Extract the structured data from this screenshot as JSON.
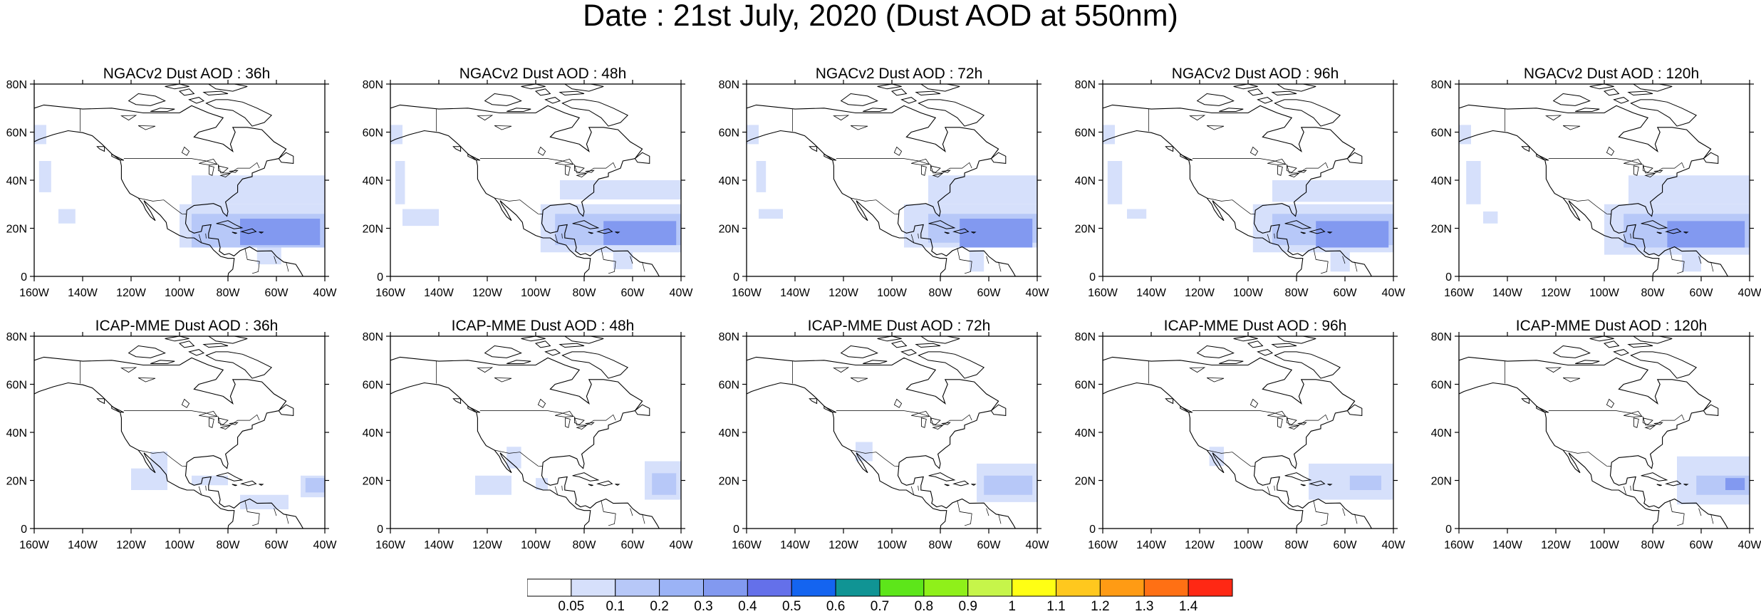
{
  "title": "Date : 21st July, 2020 (Dust AOD at 550nm)",
  "panels": [
    {
      "title": "NGACv2 Dust AOD : 36h"
    },
    {
      "title": "NGACv2 Dust AOD : 48h"
    },
    {
      "title": "NGACv2 Dust AOD : 72h"
    },
    {
      "title": "NGACv2 Dust AOD : 96h"
    },
    {
      "title": "NGACv2 Dust AOD : 120h"
    },
    {
      "title": "ICAP-MME Dust AOD : 36h"
    },
    {
      "title": "ICAP-MME Dust AOD : 48h"
    },
    {
      "title": "ICAP-MME Dust AOD : 72h"
    },
    {
      "title": "ICAP-MME Dust AOD : 96h"
    },
    {
      "title": "ICAP-MME Dust AOD : 120h"
    }
  ],
  "axes": {
    "lon_labels": [
      "160W",
      "140W",
      "120W",
      "100W",
      "80W",
      "60W",
      "40W"
    ],
    "lat_labels": [
      "80N",
      "60N",
      "40N",
      "20N",
      "0"
    ],
    "lon_range": [
      -160,
      -40
    ],
    "lat_range": [
      0,
      80
    ]
  },
  "colorbar": {
    "labels": [
      "0.05",
      "0.1",
      "0.2",
      "0.3",
      "0.4",
      "0.5",
      "0.6",
      "0.7",
      "0.8",
      "0.9",
      "1",
      "1.1",
      "1.2",
      "1.3",
      "1.4"
    ],
    "colors": [
      "#ffffff",
      "#d6e0fb",
      "#b7c8f8",
      "#9bb3f6",
      "#8299f0",
      "#6470ea",
      "#1464f0",
      "#109494",
      "#5de61a",
      "#8ff01a",
      "#c6f54a",
      "#ffff14",
      "#ffc81e",
      "#ff9b14",
      "#ff7014",
      "#ff2814"
    ]
  },
  "map_colors": {
    "land_line": "#000000",
    "low_dust": "#d6e0fb",
    "mid_dust": "#b7c8f8",
    "high_dust": "#8299f0"
  }
}
